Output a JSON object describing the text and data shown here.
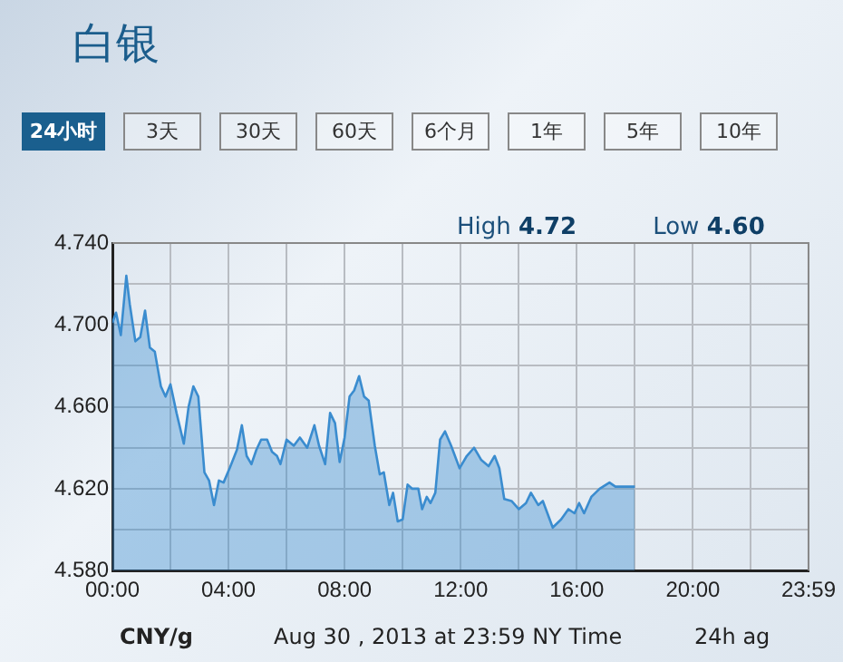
{
  "chart_data": {
    "type": "area",
    "title": "白银",
    "xlabel": "Aug 30 , 2013 at 23:59 NY Time",
    "annotations": [
      "24小时",
      "3天",
      "30天",
      "60天",
      "6个月",
      "1年",
      "5年",
      "10年",
      "High 4.72",
      "Low 4.60",
      "CNY/g",
      "24h ag"
    ],
    "x": [
      0,
      0.125,
      0.29,
      0.48,
      0.6,
      0.79,
      0.96,
      1.125,
      1.29,
      1.46,
      1.67,
      1.83,
      2,
      2.21,
      2.46,
      2.625,
      2.79,
      2.96,
      3.17,
      3.33,
      3.5,
      3.67,
      3.83,
      4.04,
      4.29,
      4.46,
      4.625,
      4.79,
      4.96,
      5.125,
      5.33,
      5.5,
      5.67,
      5.79,
      6,
      6.25,
      6.46,
      6.71,
      6.96,
      7.12,
      7.33,
      7.5,
      7.67,
      7.83,
      8,
      8.17,
      8.33,
      8.5,
      8.67,
      8.83,
      9.04,
      9.21,
      9.35,
      9.54,
      9.67,
      9.83,
      10,
      10.17,
      10.33,
      10.54,
      10.67,
      10.83,
      10.96,
      11.125,
      11.29,
      11.46,
      11.67,
      11.96,
      12.21,
      12.46,
      12.71,
      12.96,
      13.17,
      13.33,
      13.5,
      13.75,
      14,
      14.25,
      14.42,
      14.67,
      14.83,
      15.17,
      15.46,
      15.71,
      15.92,
      16.08,
      16.25,
      16.5,
      16.79,
      17.125,
      17.33,
      18
    ],
    "series": [
      {
        "color": "#3a8ccf",
        "values": [
          4.701,
          4.706,
          4.695,
          4.724,
          4.71,
          4.692,
          4.694,
          4.707,
          4.689,
          4.687,
          4.67,
          4.665,
          4.671,
          4.657,
          4.642,
          4.66,
          4.67,
          4.665,
          4.628,
          4.624,
          4.612,
          4.624,
          4.623,
          4.63,
          4.639,
          4.651,
          4.636,
          4.632,
          4.639,
          4.644,
          4.644,
          4.638,
          4.636,
          4.632,
          4.644,
          4.641,
          4.645,
          4.64,
          4.651,
          4.641,
          4.632,
          4.657,
          4.652,
          4.633,
          4.645,
          4.665,
          4.668,
          4.675,
          4.665,
          4.663,
          4.641,
          4.627,
          4.628,
          4.612,
          4.618,
          4.604,
          4.605,
          4.622,
          4.62,
          4.62,
          4.61,
          4.616,
          4.613,
          4.618,
          4.644,
          4.648,
          4.641,
          4.63,
          4.636,
          4.64,
          4.634,
          4.631,
          4.636,
          4.63,
          4.615,
          4.614,
          4.61,
          4.613,
          4.618,
          4.612,
          4.614,
          4.601,
          4.605,
          4.61,
          4.608,
          4.613,
          4.608,
          4.616,
          4.62,
          4.623,
          4.621,
          4.621
        ]
      }
    ],
    "xlim": [
      0,
      23.983
    ],
    "xticks": [
      {
        "value": 0,
        "label": "00:00"
      },
      {
        "value": 2,
        "label": null
      },
      {
        "value": 4,
        "label": "04:00"
      },
      {
        "value": 6,
        "label": null
      },
      {
        "value": 8,
        "label": "08:00"
      },
      {
        "value": 10,
        "label": null
      },
      {
        "value": 12,
        "label": "12:00"
      },
      {
        "value": 14,
        "label": null
      },
      {
        "value": 16,
        "label": "16:00"
      },
      {
        "value": 18,
        "label": null
      },
      {
        "value": 20,
        "label": "20:00"
      },
      {
        "value": 22,
        "label": null
      },
      {
        "value": 23.983,
        "label": "23:59"
      }
    ],
    "ylim": [
      4.58,
      4.74
    ],
    "yticks": [
      {
        "value": 4.58,
        "label": "4.580"
      },
      {
        "value": 4.6,
        "label": null
      },
      {
        "value": 4.62,
        "label": "4.620"
      },
      {
        "value": 4.64,
        "label": null
      },
      {
        "value": 4.66,
        "label": "4.660"
      },
      {
        "value": 4.68,
        "label": null
      },
      {
        "value": 4.7,
        "label": "4.700"
      },
      {
        "value": 4.72,
        "label": null
      },
      {
        "value": 4.74,
        "label": "4.740"
      }
    ],
    "grid": true,
    "legend": false,
    "marker": "none",
    "line_style": "solid"
  }
}
